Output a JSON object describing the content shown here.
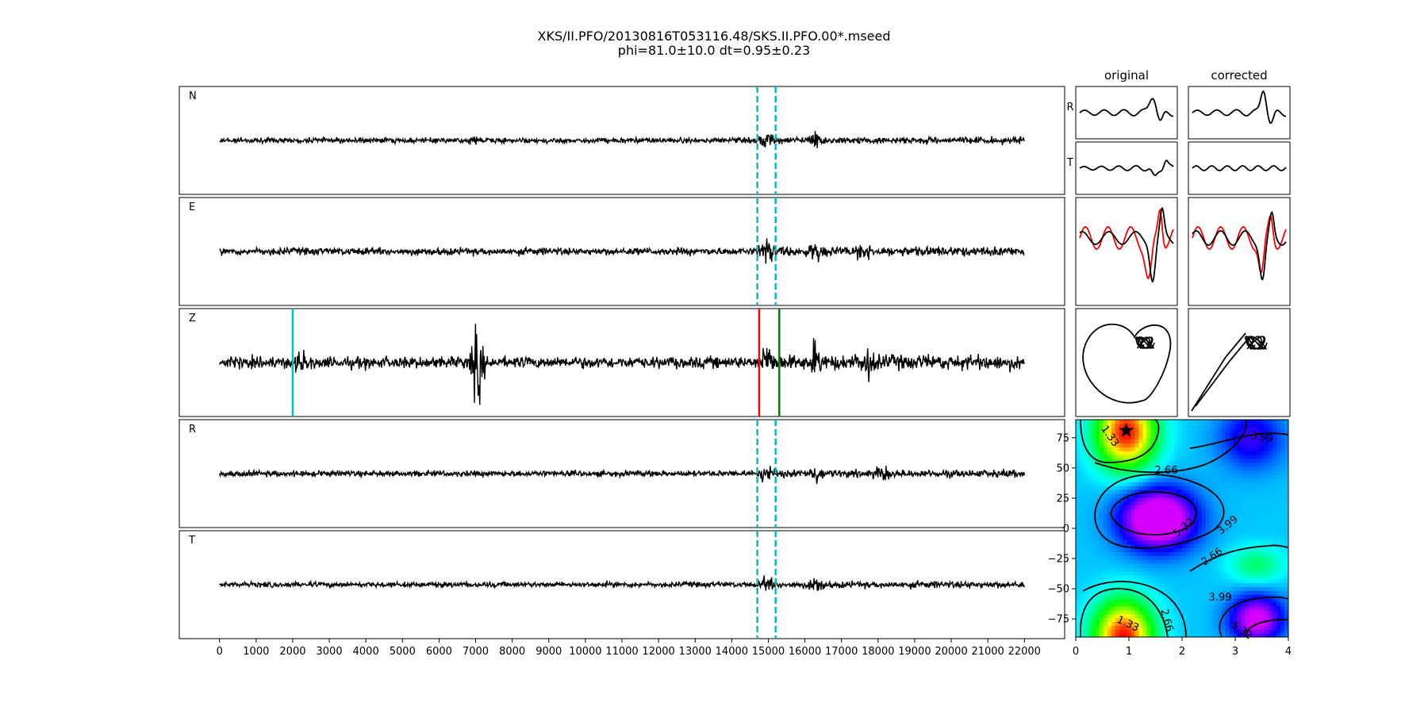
{
  "figure": {
    "title_line1": "XKS/II.PFO/20130816T053116.48/SKS.II.PFO.00*.mseed",
    "title_line2": "phi=81.0±10.0 dt=0.95±0.23"
  },
  "chart_data": [
    {
      "type": "line",
      "panel": "traces",
      "channels": [
        "N",
        "E",
        "Z",
        "R",
        "T"
      ],
      "x_ticks": [
        0,
        1000,
        2000,
        3000,
        4000,
        5000,
        6000,
        7000,
        8000,
        9000,
        10000,
        11000,
        12000,
        13000,
        14000,
        15000,
        16000,
        17000,
        18000,
        19000,
        20000,
        21000,
        22000
      ],
      "xlim": [
        -1100,
        23100
      ],
      "trace_range": [
        0,
        22000
      ],
      "window_lines": {
        "color": "#00bfbf",
        "style": "dashed",
        "x": [
          14700,
          15200
        ],
        "channels": [
          "N",
          "E",
          "R",
          "T"
        ]
      },
      "picks": [
        {
          "channel": "Z",
          "x": 2000,
          "color": "#00bfbf"
        },
        {
          "channel": "Z",
          "x": 14750,
          "color": "#ff0000"
        },
        {
          "channel": "Z",
          "x": 15300,
          "color": "#008000"
        }
      ]
    },
    {
      "type": "line",
      "panel": "waveform-comparison",
      "column_titles": [
        "original",
        "corrected"
      ],
      "row_labels": [
        "R",
        "T"
      ],
      "overlay_colors": [
        "#ff0000",
        "#000000"
      ]
    },
    {
      "type": "heatmap",
      "panel": "error-surface",
      "x_ticks": [
        0,
        1,
        2,
        3,
        4
      ],
      "xlim": [
        0,
        4
      ],
      "y_ticks": [
        75,
        50,
        25,
        0,
        -25,
        -50,
        -75
      ],
      "ylim": [
        -90,
        90
      ],
      "contour_levels": [
        "1.33",
        "2.66",
        "3.99",
        "5.32"
      ],
      "best_fit": {
        "dt": 0.95,
        "phi": 81.0
      },
      "colormap": "gist_rainbow"
    }
  ]
}
